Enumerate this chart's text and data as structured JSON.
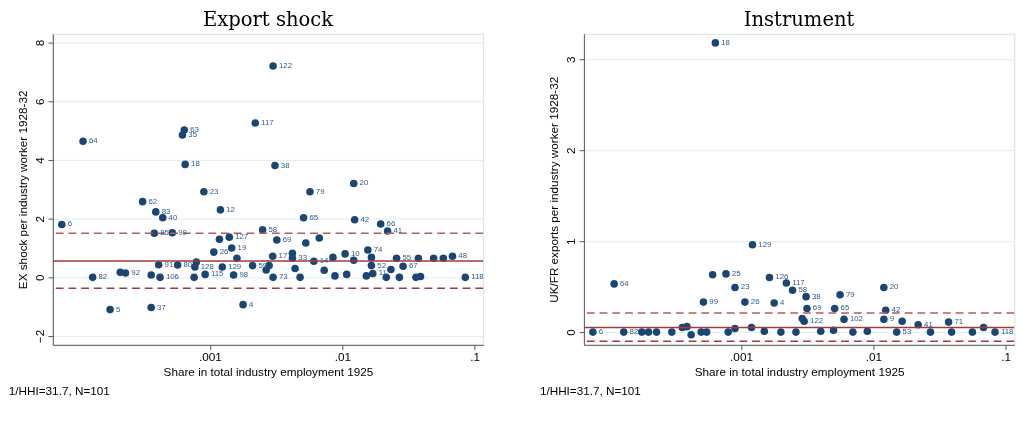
{
  "chart_data": [
    {
      "type": "scatter",
      "title": "Export shock",
      "xlabel": "Share in total industry employment 1925",
      "ylabel": "EX shock per industry worker 1928-32",
      "log": "x",
      "grid": "y",
      "marker": "circle",
      "legend": false,
      "xlim": [
        6.5e-05,
        0.116
      ],
      "xticks": [
        {
          "value": 0.001,
          "label": ".001"
        },
        {
          "value": 0.01,
          "label": ".01"
        },
        {
          "value": 0.1,
          "label": ".1"
        }
      ],
      "ylim": [
        -2.3,
        8.3
      ],
      "yticks": [
        -2,
        0,
        2,
        4,
        6,
        8
      ],
      "ref_lines": [
        {
          "axis": "y",
          "value": 0.56,
          "label": null,
          "color": "#a23a3a",
          "line_style": "solid"
        },
        {
          "axis": "y",
          "value": 1.5,
          "label": null,
          "color": "#b85b5b",
          "line_style": "dashed"
        },
        {
          "axis": "y",
          "value": -0.37,
          "label": null,
          "color": "#a23a3a",
          "line_style": "dashed"
        }
      ],
      "annotations": [
        "1/HHI=31.7, N=101",
        {
          "text": "6",
          "x": 7.6e-05,
          "y": 1.8
        },
        {
          "text": "64",
          "x": 0.00011,
          "y": 4.64
        },
        {
          "text": "82",
          "x": 0.00013,
          "y": 0
        },
        {
          "text": "5",
          "x": 0.000176,
          "y": -1.1
        },
        {
          "text": "92",
          "x": 0.00023,
          "y": 0.15
        },
        {
          "text": "62",
          "x": 0.00031,
          "y": 2.58
        },
        {
          "text": "83",
          "x": 0.00039,
          "y": 2.23
        },
        {
          "text": "40",
          "x": 0.00044,
          "y": 2.03
        },
        {
          "text": "85",
          "x": 0.00038,
          "y": 1.5
        },
        {
          "text": "99",
          "x": 0.00052,
          "y": 1.52
        },
        {
          "text": "37",
          "x": 0.00036,
          "y": -1.03
        },
        {
          "text": "91",
          "x": 0.00041,
          "y": 0.43
        },
        {
          "text": "106",
          "x": 0.00042,
          "y": 0
        },
        {
          "text": "80",
          "x": 0.00057,
          "y": 0.42
        },
        {
          "text": "63",
          "x": 0.00064,
          "y": 5.02
        },
        {
          "text": "35",
          "x": 0.00062,
          "y": 4.85
        },
        {
          "text": "18",
          "x": 0.00065,
          "y": 3.85
        },
        {
          "text": "23",
          "x": 0.0009,
          "y": 2.92
        },
        {
          "text": "12",
          "x": 0.0012,
          "y": 2.3
        },
        {
          "text": "26",
          "x": 0.00107,
          "y": 0.86
        },
        {
          "text": "127",
          "x": 0.0014,
          "y": 1.37
        },
        {
          "text": "19",
          "x": 0.00146,
          "y": 1.0
        },
        {
          "text": "129",
          "x": 0.00124,
          "y": 0.35
        },
        {
          "text": "128",
          "x": 0.00077,
          "y": 0.35
        },
        {
          "text": "115",
          "x": 0.00092,
          "y": 0.1
        },
        {
          "text": "98",
          "x": 0.00151,
          "y": 0.08
        },
        {
          "text": "4",
          "x": 0.00178,
          "y": -0.93
        },
        {
          "text": "59",
          "x": 0.0021,
          "y": 0.4
        },
        {
          "text": "122",
          "x": 0.003,
          "y": 7.2
        },
        {
          "text": "117",
          "x": 0.0022,
          "y": 5.26
        },
        {
          "text": "38",
          "x": 0.0031,
          "y": 3.81
        },
        {
          "text": "20",
          "x": 0.0122,
          "y": 3.2
        },
        {
          "text": "79",
          "x": 0.0057,
          "y": 2.92
        },
        {
          "text": "65",
          "x": 0.0051,
          "y": 2.03
        },
        {
          "text": "42",
          "x": 0.0124,
          "y": 1.96
        },
        {
          "text": "66",
          "x": 0.0195,
          "y": 1.82
        },
        {
          "text": "41",
          "x": 0.022,
          "y": 1.58
        },
        {
          "text": "58",
          "x": 0.0025,
          "y": 1.62
        },
        {
          "text": "69",
          "x": 0.0032,
          "y": 1.27
        },
        {
          "text": "74",
          "x": 0.0156,
          "y": 0.93
        },
        {
          "text": "10",
          "x": 0.0105,
          "y": 0.8
        },
        {
          "text": "17",
          "x": 0.00298,
          "y": 0.72
        },
        {
          "text": "33",
          "x": 0.0042,
          "y": 0.65
        },
        {
          "text": "14",
          "x": 0.0061,
          "y": 0.55
        },
        {
          "text": "52",
          "x": 0.0166,
          "y": 0.4
        },
        {
          "text": "55",
          "x": 0.0257,
          "y": 0.65
        },
        {
          "text": "67",
          "x": 0.0288,
          "y": 0.38
        },
        {
          "text": "48",
          "x": 0.068,
          "y": 0.72
        },
        {
          "text": "118",
          "x": 0.085,
          "y": 0
        },
        {
          "text": "73",
          "x": 0.003,
          "y": 0
        },
        {
          "text": "11",
          "x": 0.017,
          "y": 0.13
        }
      ],
      "series": [
        {
          "color": "#1a4674",
          "x": [
            7.6e-05,
            0.00011,
            0.00013,
            0.000176,
            0.00021,
            0.00023,
            0.00031,
            0.00039,
            0.00044,
            0.00038,
            0.00052,
            0.00036,
            0.00041,
            0.00036,
            0.00042,
            0.00057,
            0.00064,
            0.00062,
            0.00065,
            0.0009,
            0.0012,
            0.00107,
            0.0014,
            0.00118,
            0.00146,
            0.0016,
            0.00124,
            0.00077,
            0.00079,
            0.00092,
            0.00151,
            0.00076,
            0.00178,
            0.0021,
            0.003,
            0.0022,
            0.0031,
            0.0122,
            0.0057,
            0.0051,
            0.0124,
            0.0195,
            0.022,
            0.0025,
            0.0032,
            0.0053,
            0.0067,
            0.0156,
            0.0105,
            0.0042,
            0.00298,
            0.0042,
            0.0061,
            0.0085,
            0.0122,
            0.0166,
            0.0166,
            0.0257,
            0.0288,
            0.0376,
            0.049,
            0.058,
            0.068,
            0.085,
            0.00266,
            0.0028,
            0.003,
            0.0048,
            0.0044,
            0.0073,
            0.0088,
            0.0152,
            0.017,
            0.0233,
            0.0215,
            0.027,
            0.036,
            0.039,
            0.0108
          ],
          "values": [
            1.8,
            4.64,
            0,
            -1.1,
            0.17,
            0.15,
            2.58,
            2.23,
            2.03,
            1.5,
            1.52,
            -1.03,
            0.43,
            0.08,
            0,
            0.42,
            5.02,
            4.85,
            3.85,
            2.92,
            2.3,
            0.86,
            1.37,
            1.3,
            1.0,
            0.65,
            0.35,
            0.35,
            0.52,
            0.1,
            0.08,
            0,
            -0.93,
            0.4,
            7.2,
            5.26,
            3.81,
            3.2,
            2.92,
            2.03,
            1.96,
            1.82,
            1.58,
            1.62,
            1.27,
            1.17,
            1.34,
            0.93,
            0.8,
            0.82,
            0.72,
            0.65,
            0.55,
            0.68,
            0.58,
            0.68,
            0.4,
            0.65,
            0.38,
            0.65,
            0.65,
            0.65,
            0.72,
            0,
            0.25,
            0.4,
            0,
            0,
            0.3,
            0.24,
            0.05,
            0.05,
            0.13,
            0.27,
            0,
            0,
            0,
            0.03,
            0.1
          ]
        }
      ]
    },
    {
      "type": "scatter",
      "title": "Instrument",
      "xlabel": "Share in total industry employment 1925",
      "ylabel": "UK/FR exports per industry worker 1928-32",
      "log": "x",
      "grid": "y",
      "marker": "circle",
      "legend": false,
      "xlim": [
        6.5e-05,
        0.116
      ],
      "xticks": [
        {
          "value": 0.001,
          "label": ".001"
        },
        {
          "value": 0.01,
          "label": ".01"
        },
        {
          "value": 0.1,
          "label": ".1"
        }
      ],
      "ylim": [
        -0.14,
        3.28
      ],
      "yticks": [
        0,
        1,
        2,
        3
      ],
      "ref_lines": [
        {
          "axis": "y",
          "value": 0.05,
          "label": null,
          "color": "#a23a3a",
          "line_style": "solid"
        },
        {
          "axis": "y",
          "value": 0.21,
          "label": null,
          "color": "#b85b5b",
          "line_style": "dashed"
        },
        {
          "axis": "y",
          "value": -0.1,
          "label": null,
          "color": "#a23a3a",
          "line_style": "dashed"
        }
      ],
      "annotations": [
        "1/HHI=31.7, N=101",
        {
          "text": "18",
          "x": 0.00064,
          "y": 3.18
        },
        {
          "text": "6",
          "x": 7.6e-05,
          "y": 0
        },
        {
          "text": "64",
          "x": 0.00011,
          "y": 0.53
        },
        {
          "text": "82",
          "x": 0.00013,
          "y": 0
        },
        {
          "text": "129",
          "x": 0.00122,
          "y": 0.96
        },
        {
          "text": "25",
          "x": 0.00077,
          "y": 0.64
        },
        {
          "text": "23",
          "x": 0.0009,
          "y": 0.49
        },
        {
          "text": "99",
          "x": 0.00052,
          "y": 0.33
        },
        {
          "text": "26",
          "x": 0.00107,
          "y": 0.33
        },
        {
          "text": "126",
          "x": 0.00164,
          "y": 0.6
        },
        {
          "text": "117",
          "x": 0.0022,
          "y": 0.54
        },
        {
          "text": "58",
          "x": 0.00245,
          "y": 0.46
        },
        {
          "text": "4",
          "x": 0.00178,
          "y": 0.32
        },
        {
          "text": "38",
          "x": 0.0031,
          "y": 0.39
        },
        {
          "text": "69",
          "x": 0.00315,
          "y": 0.26
        },
        {
          "text": "65",
          "x": 0.0051,
          "y": 0.26
        },
        {
          "text": "79",
          "x": 0.0056,
          "y": 0.41
        },
        {
          "text": "20",
          "x": 0.012,
          "y": 0.49
        },
        {
          "text": "42",
          "x": 0.0124,
          "y": 0.24
        },
        {
          "text": "122",
          "x": 0.003,
          "y": 0.12
        },
        {
          "text": "102",
          "x": 0.006,
          "y": 0.14
        },
        {
          "text": "9",
          "x": 0.012,
          "y": 0.14
        },
        {
          "text": "41",
          "x": 0.0218,
          "y": 0.08
        },
        {
          "text": "71",
          "x": 0.037,
          "y": 0.11
        },
        {
          "text": "118",
          "x": 0.083,
          "y": 0
        },
        {
          "text": "53",
          "x": 0.015,
          "y": 0
        }
      ],
      "series": [
        {
          "color": "#1a4674",
          "x": [
            0.00064,
            7.6e-05,
            0.00011,
            0.00013,
            0.000178,
            0.0002,
            0.00023,
            0.0003,
            0.00036,
            0.00039,
            0.00042,
            0.0005,
            0.00055,
            0.0008,
            0.0009,
            0.00122,
            0.00061,
            0.00077,
            0.0009,
            0.00052,
            0.00107,
            0.0012,
            0.00164,
            0.0022,
            0.00245,
            0.00178,
            0.0031,
            0.00315,
            0.0051,
            0.0056,
            0.012,
            0.0124,
            0.0029,
            0.003,
            0.006,
            0.012,
            0.0165,
            0.0218,
            0.037,
            0.068,
            0.083,
            0.0015,
            0.002,
            0.0026,
            0.004,
            0.005,
            0.007,
            0.009,
            0.015,
            0.027,
            0.039,
            0.056
          ],
          "values": [
            3.18,
            0,
            0.53,
            0,
            0,
            0,
            0,
            0,
            0.05,
            0.06,
            -0.03,
            0,
            0,
            0,
            0.04,
            0.96,
            0.63,
            0.64,
            0.49,
            0.33,
            0.33,
            0.05,
            0.6,
            0.54,
            0.46,
            0.32,
            0.39,
            0.26,
            0.26,
            0.41,
            0.49,
            0.24,
            0.15,
            0.12,
            0.14,
            0.14,
            0.12,
            0.08,
            0.11,
            0.05,
            0,
            0.01,
            0,
            0,
            0.01,
            0.02,
            0,
            0.01,
            0,
            0,
            0,
            0
          ]
        }
      ]
    }
  ]
}
